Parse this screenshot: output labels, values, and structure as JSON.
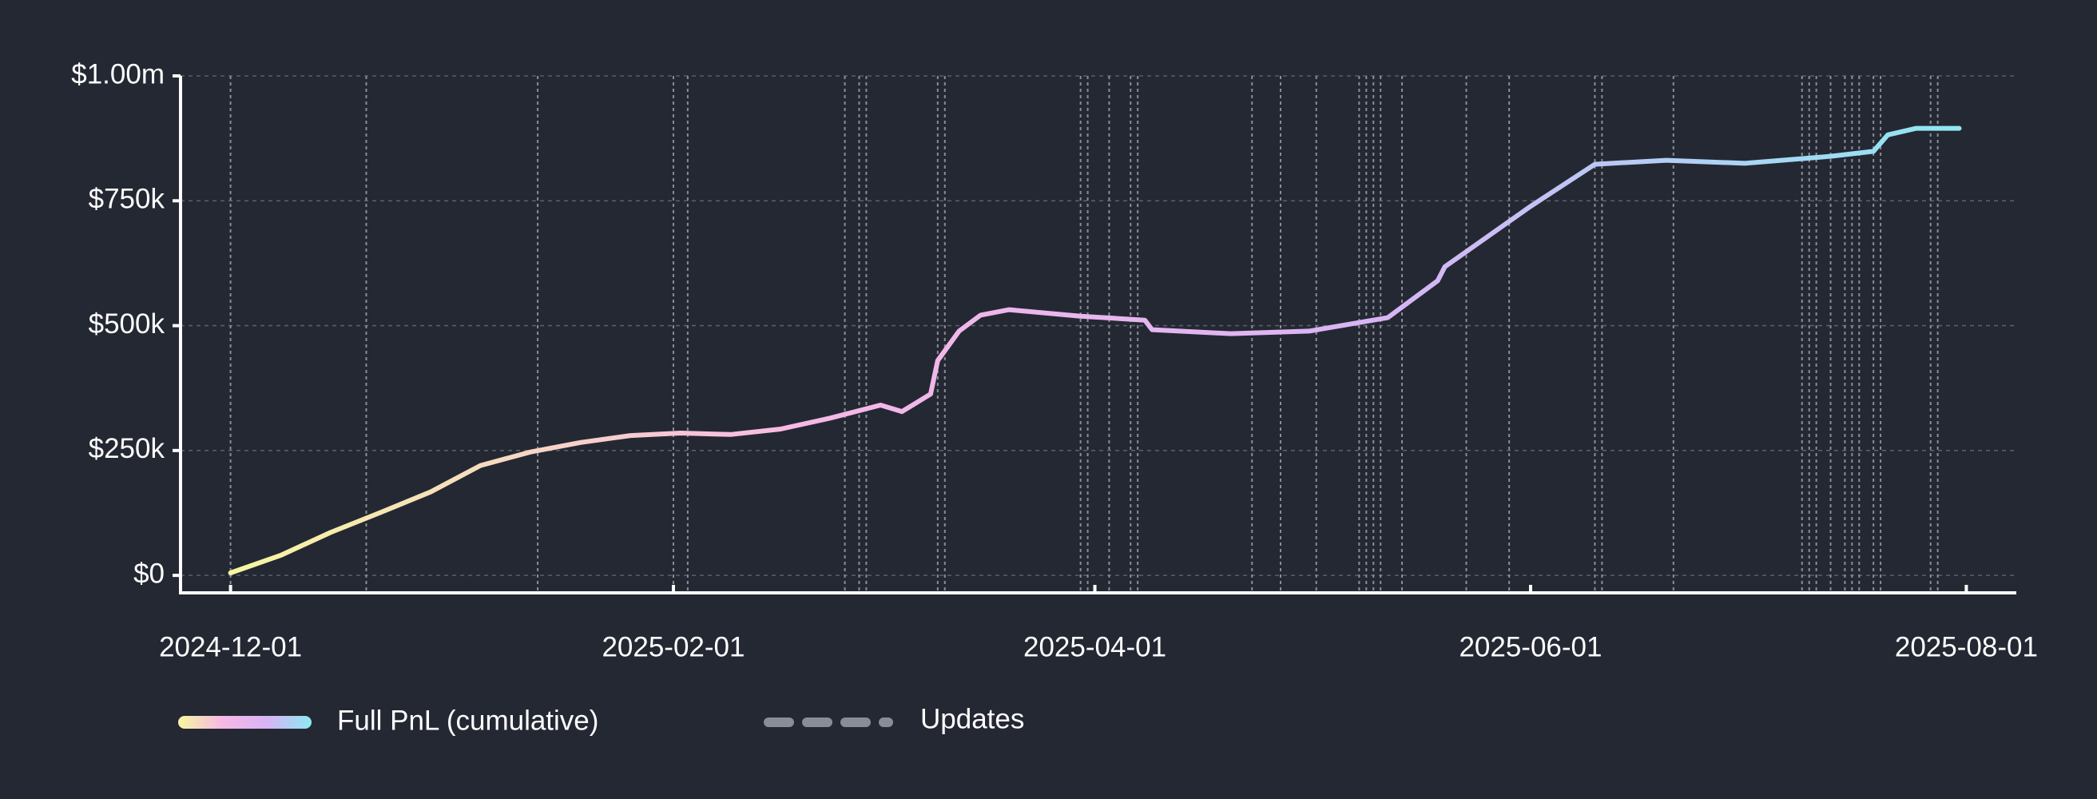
{
  "chart_data": {
    "type": "line",
    "x": [
      "2024-12-01",
      "2024-12-08",
      "2024-12-15",
      "2024-12-22",
      "2024-12-29",
      "2025-01-05",
      "2025-01-12",
      "2025-01-19",
      "2025-01-26",
      "2025-02-02",
      "2025-02-09",
      "2025-02-16",
      "2025-02-23",
      "2025-03-02",
      "2025-03-05",
      "2025-03-09",
      "2025-03-10",
      "2025-03-13",
      "2025-03-16",
      "2025-03-20",
      "2025-03-30",
      "2025-04-08",
      "2025-04-09",
      "2025-04-20",
      "2025-05-01",
      "2025-05-12",
      "2025-05-19",
      "2025-05-20",
      "2025-06-01",
      "2025-06-10",
      "2025-06-20",
      "2025-07-01",
      "2025-07-13",
      "2025-07-19",
      "2025-07-21",
      "2025-07-25",
      "2025-07-31"
    ],
    "series": [
      {
        "name": "Full PnL (cumulative)",
        "colors": [
          "#f6f7a0",
          "#f7b8e6",
          "#d8b4f5",
          "#8ee8f2"
        ],
        "values": [
          5000,
          40000,
          86000,
          126000,
          167000,
          220000,
          247000,
          266000,
          280000,
          285000,
          282000,
          293000,
          315000,
          341000,
          328000,
          363000,
          430000,
          489000,
          521000,
          532000,
          519000,
          511000,
          492000,
          484000,
          489000,
          516000,
          590000,
          618000,
          739000,
          823000,
          831000,
          825000,
          839000,
          849000,
          882000,
          895000,
          895000
        ]
      }
    ],
    "updates": {
      "name": "Updates",
      "color": "#8a8d96",
      "dates": [
        "2024-12-01",
        "2024-12-20",
        "2025-01-13",
        "2025-02-01",
        "2025-02-03",
        "2025-02-25",
        "2025-02-27",
        "2025-02-28",
        "2025-03-10",
        "2025-03-11",
        "2025-03-30",
        "2025-03-31",
        "2025-04-03",
        "2025-04-06",
        "2025-04-07",
        "2025-04-23",
        "2025-04-27",
        "2025-05-02",
        "2025-05-08",
        "2025-05-09",
        "2025-05-10",
        "2025-05-11",
        "2025-05-14",
        "2025-05-23",
        "2025-05-29",
        "2025-06-10",
        "2025-06-11",
        "2025-06-21",
        "2025-07-09",
        "2025-07-10",
        "2025-07-11",
        "2025-07-13",
        "2025-07-15",
        "2025-07-16",
        "2025-07-17",
        "2025-07-19",
        "2025-07-20",
        "2025-07-27",
        "2025-07-28"
      ]
    },
    "xlim": [
      "2024-11-24",
      "2025-08-08"
    ],
    "xticks": [
      "2024-12-01",
      "2025-02-01",
      "2025-04-01",
      "2025-06-01",
      "2025-08-01"
    ],
    "ylim": [
      -35000,
      1000000
    ],
    "yticks": [
      {
        "value": 0,
        "label": "$0"
      },
      {
        "value": 250000,
        "label": "$250k"
      },
      {
        "value": 500000,
        "label": "$500k"
      },
      {
        "value": 750000,
        "label": "$750k"
      },
      {
        "value": 1000000,
        "label": "$1.00m"
      }
    ],
    "grid": true
  }
}
